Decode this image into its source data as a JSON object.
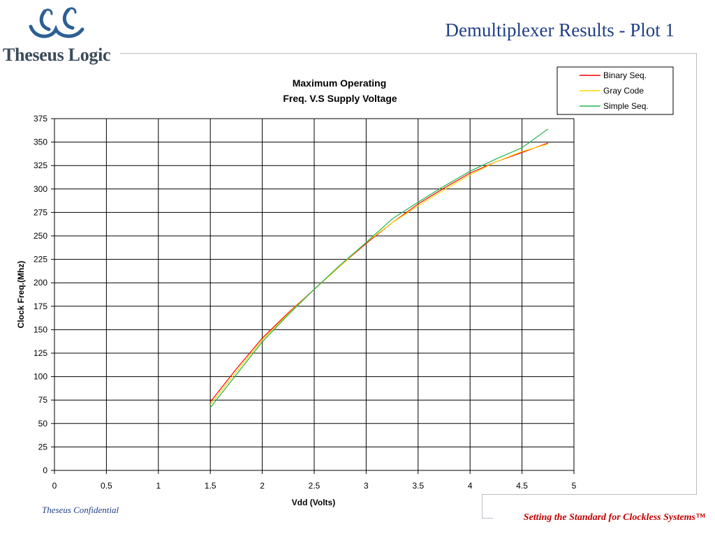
{
  "brand": {
    "name": "Theseus Logic"
  },
  "slide": {
    "title": "Demultiplexer Results - Plot 1"
  },
  "footer": {
    "left": "Theseus Confidential",
    "right": "Setting the Standard for Clockless Systems™"
  },
  "colors": {
    "title": "#1f3f86",
    "footer_right": "#c00000",
    "binary": "#ff0000",
    "gray": "#ffd700",
    "simple": "#22b14c"
  },
  "chart_data": {
    "type": "line",
    "title_lines": [
      "Maximum Operating",
      "Freq. V.S Supply Voltage"
    ],
    "xlabel": "Vdd (Volts)",
    "ylabel": "Clock Freq.(Mhz)",
    "xlim": [
      0,
      5
    ],
    "ylim": [
      0,
      375
    ],
    "x_ticks": [
      "0",
      "0.5",
      "1",
      "1.5",
      "2",
      "2.5",
      "3",
      "3.5",
      "4",
      "4.5",
      "5"
    ],
    "y_ticks": [
      "0",
      "25",
      "50",
      "75",
      "100",
      "125",
      "150",
      "175",
      "200",
      "225",
      "250",
      "275",
      "300",
      "325",
      "350",
      "375"
    ],
    "grid": true,
    "legend_position": "top-right",
    "series": [
      {
        "name": "Binary Seq.",
        "color": "#ff0000",
        "points": [
          [
            1.5,
            73
          ],
          [
            1.75,
            108
          ],
          [
            2.0,
            141
          ],
          [
            2.25,
            168
          ],
          [
            2.5,
            193
          ],
          [
            2.75,
            218
          ],
          [
            3.0,
            242
          ],
          [
            3.25,
            264
          ],
          [
            3.5,
            284
          ],
          [
            3.75,
            301
          ],
          [
            4.0,
            317
          ],
          [
            4.25,
            329
          ],
          [
            4.5,
            339
          ],
          [
            4.75,
            349
          ]
        ]
      },
      {
        "name": "Gray Code",
        "color": "#ffd700",
        "points": [
          [
            1.5,
            70
          ],
          [
            1.75,
            105
          ],
          [
            2.0,
            139
          ],
          [
            2.25,
            167
          ],
          [
            2.5,
            193
          ],
          [
            2.75,
            218
          ],
          [
            3.0,
            243
          ],
          [
            3.25,
            264
          ],
          [
            3.5,
            282
          ],
          [
            3.75,
            299
          ],
          [
            4.0,
            315
          ],
          [
            4.25,
            329
          ],
          [
            4.5,
            340
          ],
          [
            4.75,
            348
          ]
        ]
      },
      {
        "name": "Simple Seq.",
        "color": "#22b14c",
        "points": [
          [
            1.5,
            67
          ],
          [
            1.75,
            102
          ],
          [
            2.0,
            137
          ],
          [
            2.25,
            166
          ],
          [
            2.5,
            193
          ],
          [
            2.75,
            219
          ],
          [
            3.0,
            243
          ],
          [
            3.25,
            268
          ],
          [
            3.5,
            286
          ],
          [
            3.75,
            303
          ],
          [
            4.0,
            319
          ],
          [
            4.25,
            332
          ],
          [
            4.5,
            344
          ],
          [
            4.75,
            364
          ]
        ]
      }
    ]
  }
}
